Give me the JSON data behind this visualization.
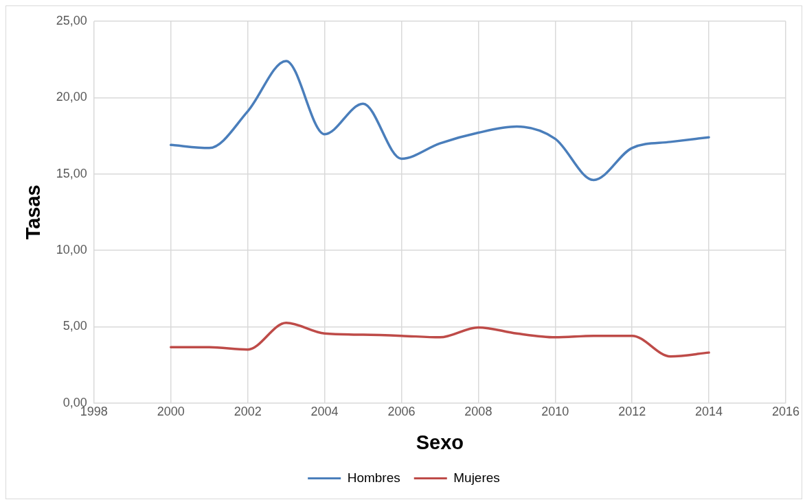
{
  "chart_data": {
    "type": "line",
    "xlabel": "Sexo",
    "ylabel": "Tasas",
    "x": [
      2000,
      2001,
      2002,
      2003,
      2004,
      2005,
      2006,
      2007,
      2008,
      2009,
      2010,
      2011,
      2012,
      2013,
      2014
    ],
    "series": [
      {
        "name": "Hombres",
        "color": "#4a7ebb",
        "values": [
          16.9,
          16.7,
          19.1,
          22.4,
          17.6,
          19.6,
          16.0,
          17.0,
          17.7,
          18.1,
          17.3,
          14.6,
          16.7,
          17.1,
          17.4
        ]
      },
      {
        "name": "Mujeres",
        "color": "#be4b48",
        "values": [
          3.65,
          3.65,
          3.5,
          5.25,
          4.55,
          4.47,
          4.4,
          4.3,
          4.95,
          4.55,
          4.3,
          4.4,
          4.4,
          3.05,
          3.3
        ]
      }
    ],
    "xlim": [
      1998,
      2016
    ],
    "xticks": [
      1998,
      2000,
      2002,
      2004,
      2006,
      2008,
      2010,
      2012,
      2014,
      2016
    ],
    "ylim": [
      0,
      25
    ],
    "yticks": [
      {
        "value": 0,
        "label": "0,00"
      },
      {
        "value": 5,
        "label": "5,00"
      },
      {
        "value": 10,
        "label": "10,00"
      },
      {
        "value": 15,
        "label": "15,00"
      },
      {
        "value": 20,
        "label": "20,00"
      },
      {
        "value": 25,
        "label": "25,00"
      }
    ],
    "grid": true,
    "legend": "bottom",
    "marker": "none",
    "line_style": "solid"
  }
}
